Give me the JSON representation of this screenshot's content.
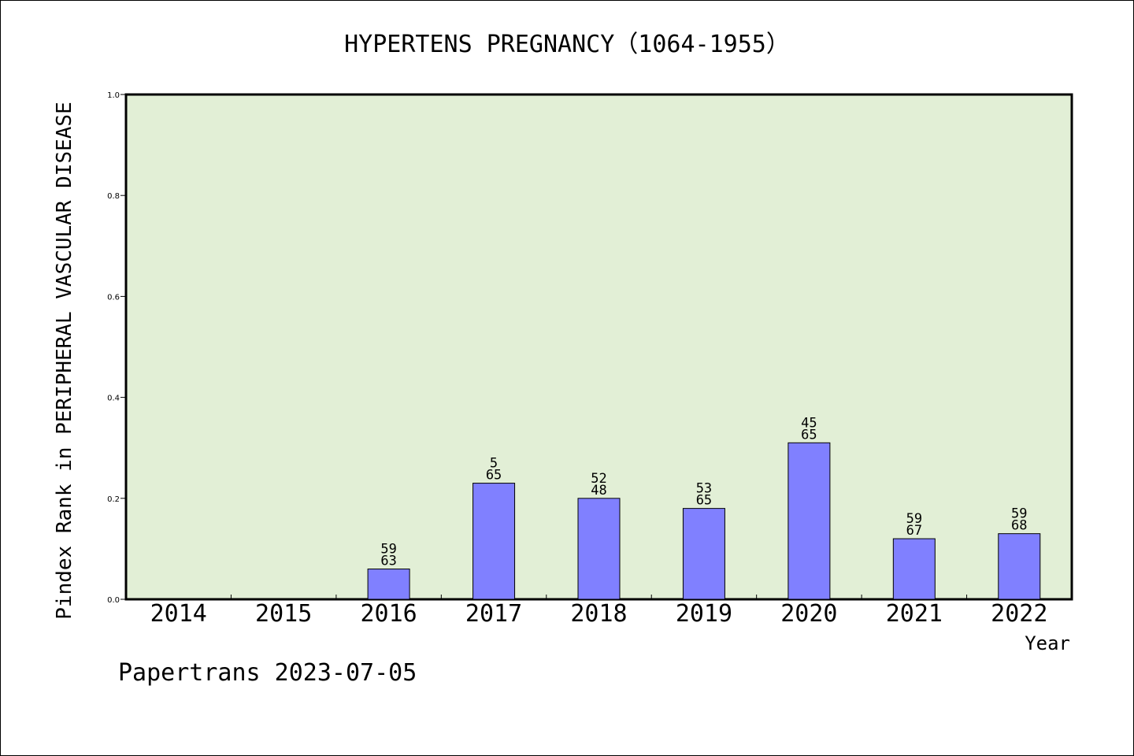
{
  "chart_data": {
    "type": "bar",
    "title": "HYPERTENS PREGNANCY（1064-1955）",
    "xlabel": "Year",
    "ylabel": "Pindex Rank in PERIPHERAL VASCULAR DISEASE",
    "ylim": [
      0.0,
      1.0
    ],
    "y_ticks": [
      "0.0",
      "0.2",
      "0.4",
      "0.6",
      "0.8",
      "1.0"
    ],
    "categories": [
      "2014",
      "2015",
      "2016",
      "2017",
      "2018",
      "2019",
      "2020",
      "2021",
      "2022"
    ],
    "values": [
      null,
      null,
      0.06,
      0.23,
      0.2,
      0.18,
      0.31,
      0.12,
      0.13
    ],
    "bar_labels": [
      null,
      null,
      [
        "59",
        "63"
      ],
      [
        "5",
        "65"
      ],
      [
        "52",
        "48"
      ],
      [
        "53",
        "65"
      ],
      [
        "45",
        "65"
      ],
      [
        "59",
        "67"
      ],
      [
        "59",
        "68"
      ]
    ],
    "grid": false,
    "background_color": "#e2efd6",
    "bar_color": "#8080ff"
  },
  "footer": "Papertrans 2023-07-05"
}
